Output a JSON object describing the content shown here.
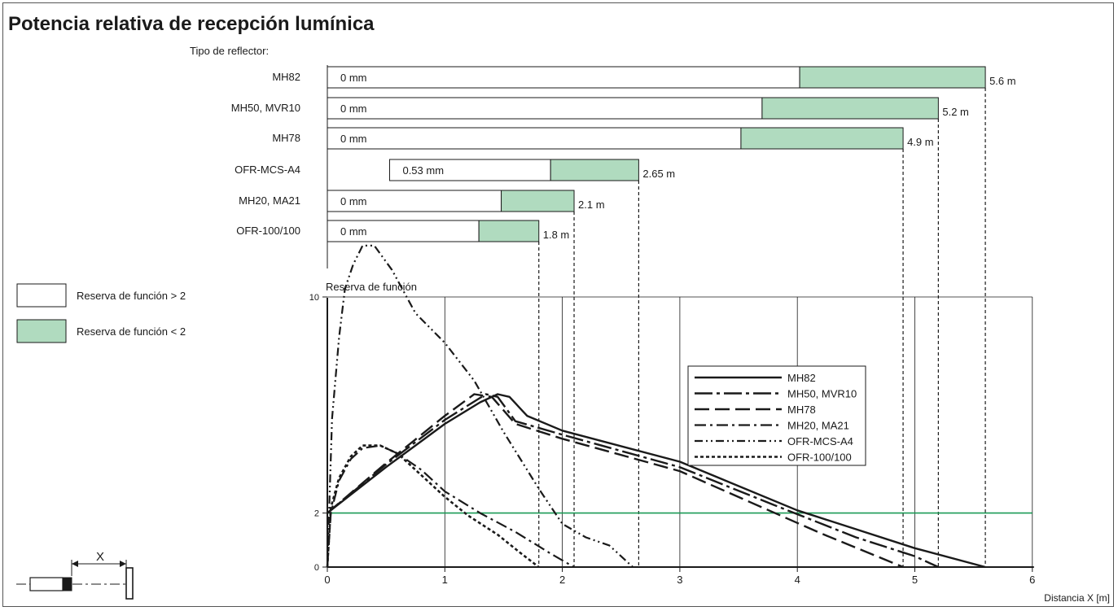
{
  "title": "Potencia relativa de recepción lumínica",
  "colors": {
    "green": "#b0dbbf",
    "green_line": "#1a9a55",
    "ink": "#1a1a1a"
  },
  "legend_boxes": [
    {
      "label": "Reserva de función > 2",
      "fill": "#ffffff"
    },
    {
      "label": "Reserva de función < 2",
      "fill": "#b0dbbf"
    }
  ],
  "chart_data": [
    {
      "type": "bar",
      "subtitle": "Tipo de reflector:",
      "unit": "m",
      "categories": [
        "MH82",
        "MH50, MVR10",
        "MH78",
        "OFR-MCS-A4",
        "MH20, MA21",
        "OFR-100/100"
      ],
      "series": [
        {
          "name": "Reserva de función > 2",
          "start": [
            0,
            0,
            0,
            0.53,
            0,
            0
          ],
          "end": [
            4.02,
            3.7,
            3.52,
            1.9,
            1.48,
            1.29
          ]
        },
        {
          "name": "Reserva de función < 2",
          "start": [
            4.02,
            3.7,
            3.52,
            1.9,
            1.48,
            1.29
          ],
          "end": [
            5.6,
            5.2,
            4.9,
            2.65,
            2.1,
            1.8
          ]
        }
      ],
      "start_labels": [
        "0 mm",
        "0 mm",
        "0 mm",
        "0.53 mm",
        "0 mm",
        "0 mm"
      ],
      "end_labels": [
        "5.6 m",
        "5.2 m",
        "4.9 m",
        "2.65 m",
        "2.1 m",
        "1.8 m"
      ]
    },
    {
      "type": "line",
      "ylabel": "Reserva de función",
      "xlabel": "Distancia X [m]",
      "xlim": [
        0,
        6
      ],
      "ylim": [
        0,
        12
      ],
      "xticks": [
        0,
        1,
        2,
        3,
        4,
        5,
        6
      ],
      "yticks": [
        0,
        2,
        10
      ],
      "grid": true,
      "threshold_y": 2,
      "legend_position": "center-right",
      "series": [
        {
          "name": "MH82",
          "style": "solid",
          "x": [
            0,
            0.5,
            1.0,
            1.3,
            1.45,
            1.55,
            1.7,
            2.0,
            3.0,
            4.0,
            4.5,
            5.0,
            5.6
          ],
          "y": [
            2,
            3.7,
            5.3,
            6.1,
            6.4,
            6.3,
            5.6,
            5.05,
            3.9,
            2.1,
            1.4,
            0.7,
            0
          ]
        },
        {
          "name": "MH50, MVR10",
          "style": "dashdot",
          "x": [
            0,
            0.5,
            1.0,
            1.35,
            1.45,
            1.6,
            2.0,
            3.0,
            3.8,
            4.5,
            5.0,
            5.2
          ],
          "y": [
            2,
            3.8,
            5.45,
            6.4,
            6.3,
            5.4,
            4.9,
            3.7,
            2.3,
            1.1,
            0.4,
            0
          ]
        },
        {
          "name": "MH78",
          "style": "dashed",
          "x": [
            0,
            0.5,
            1.0,
            1.25,
            1.4,
            1.6,
            2.0,
            3.0,
            3.6,
            4.2,
            4.9
          ],
          "y": [
            2,
            3.85,
            5.6,
            6.4,
            6.3,
            5.3,
            4.75,
            3.55,
            2.4,
            1.25,
            0
          ]
        },
        {
          "name": "MH20, MA21",
          "style": "longdashdot",
          "x": [
            0,
            0.03,
            0.1,
            0.2,
            0.3,
            0.45,
            0.6,
            0.8,
            1.0,
            1.3,
            1.6,
            1.9,
            2.1
          ],
          "y": [
            0,
            2,
            3.2,
            4.0,
            4.4,
            4.5,
            4.2,
            3.6,
            2.8,
            2.0,
            1.3,
            0.5,
            0
          ]
        },
        {
          "name": "OFR-MCS-A4",
          "style": "dashdotdot",
          "x": [
            0,
            0.04,
            0.1,
            0.15,
            0.22,
            0.3,
            0.4,
            0.55,
            0.75,
            1.0,
            1.25,
            1.5,
            1.8,
            2.0,
            2.2,
            2.4,
            2.6
          ],
          "y": [
            0,
            5.5,
            8.5,
            10.3,
            11.2,
            11.9,
            11.9,
            11.0,
            9.4,
            8.3,
            6.9,
            5.0,
            2.9,
            1.6,
            1.1,
            0.8,
            0
          ]
        },
        {
          "name": "OFR-100/100",
          "style": "dotted",
          "x": [
            0,
            0.03,
            0.1,
            0.2,
            0.3,
            0.45,
            0.6,
            0.8,
            1.0,
            1.2,
            1.45,
            1.65,
            1.8
          ],
          "y": [
            0,
            2.2,
            3.3,
            4.1,
            4.5,
            4.5,
            4.2,
            3.4,
            2.6,
            1.9,
            1.2,
            0.5,
            0
          ]
        }
      ]
    }
  ],
  "diagram": {
    "label": "X"
  }
}
